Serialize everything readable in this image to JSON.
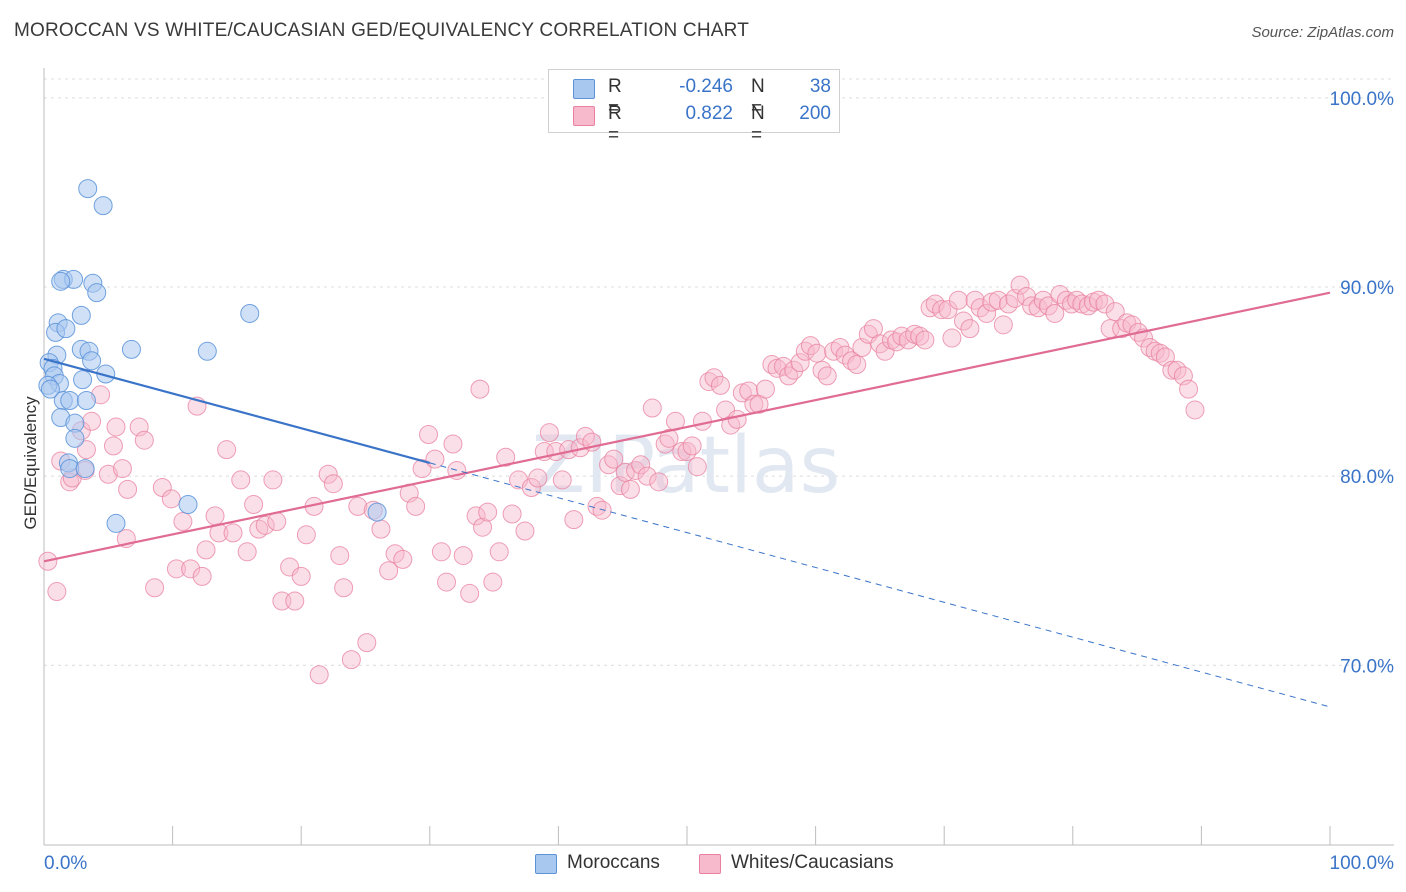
{
  "header": {
    "title": "MOROCCAN VS WHITE/CAUCASIAN GED/EQUIVALENCY CORRELATION CHART",
    "source": "Source: ZipAtlas.com"
  },
  "legend": {
    "rows": [
      {
        "r_label": "R =",
        "r_value": "-0.246",
        "n_label": "N =",
        "n_value": "38",
        "color": "#a9c8f0"
      },
      {
        "r_label": "R =",
        "r_value": "0.822",
        "n_label": "N =",
        "n_value": "200",
        "color": "#f7b9cc"
      }
    ]
  },
  "bottom_legend": {
    "moroccans": "Moroccans",
    "whites": "Whites/Caucasians"
  },
  "watermark": "ZIPatlas",
  "chart_data": {
    "type": "scatter",
    "title": "MOROCCAN VS WHITE/CAUCASIAN GED/EQUIVALENCY CORRELATION CHART",
    "ylabel": "GED/Equivalency",
    "xlabel": "",
    "xlim": [
      0,
      100
    ],
    "ylim": [
      60.5,
      102
    ],
    "x_tick_labels": [
      "0.0%",
      "100.0%"
    ],
    "y_ticks": [
      70,
      80,
      90,
      100
    ],
    "y_tick_labels": [
      "70.0%",
      "80.0%",
      "90.0%",
      "100.0%"
    ],
    "grid": true,
    "colors": {
      "moroccan_fill": "#a9c8f0",
      "moroccan_stroke": "#5b93d9",
      "moroccan_line": "#3a74c8",
      "white_fill": "#f7b9cc",
      "white_stroke": "#e8809f",
      "white_line": "#e06b93",
      "axis_label": "#3a74c8"
    },
    "series": [
      {
        "name": "Moroccans",
        "r": -0.246,
        "n": 38,
        "trend": {
          "x": [
            0,
            30
          ],
          "y": [
            86.2,
            80.7
          ],
          "dashed_to": [
            100,
            67.8
          ]
        },
        "points": [
          [
            3.4,
            95.2
          ],
          [
            4.6,
            94.3
          ],
          [
            1.5,
            90.4
          ],
          [
            2.3,
            90.4
          ],
          [
            1.3,
            90.3
          ],
          [
            3.8,
            90.2
          ],
          [
            4.1,
            89.7
          ],
          [
            16.0,
            88.6
          ],
          [
            2.9,
            88.5
          ],
          [
            1.1,
            88.1
          ],
          [
            0.9,
            87.6
          ],
          [
            1.7,
            87.8
          ],
          [
            6.8,
            86.7
          ],
          [
            2.9,
            86.7
          ],
          [
            3.5,
            86.6
          ],
          [
            12.7,
            86.6
          ],
          [
            1.0,
            86.4
          ],
          [
            3.7,
            86.1
          ],
          [
            0.4,
            86.0
          ],
          [
            0.7,
            85.7
          ],
          [
            4.8,
            85.4
          ],
          [
            0.8,
            85.3
          ],
          [
            3.0,
            85.1
          ],
          [
            1.2,
            84.9
          ],
          [
            0.3,
            84.8
          ],
          [
            0.5,
            84.6
          ],
          [
            1.5,
            84.0
          ],
          [
            2.0,
            84.0
          ],
          [
            3.3,
            84.0
          ],
          [
            1.3,
            83.1
          ],
          [
            2.4,
            82.8
          ],
          [
            2.4,
            82.0
          ],
          [
            1.9,
            80.7
          ],
          [
            2.0,
            80.4
          ],
          [
            3.2,
            80.4
          ],
          [
            11.2,
            78.5
          ],
          [
            25.9,
            78.1
          ],
          [
            5.6,
            77.5
          ]
        ]
      },
      {
        "name": "Whites/Caucasians",
        "r": 0.822,
        "n": 200,
        "trend": {
          "x": [
            0,
            100
          ],
          "y": [
            75.5,
            89.7
          ]
        },
        "points": [
          [
            0.3,
            75.5
          ],
          [
            1.0,
            73.9
          ],
          [
            1.3,
            80.8
          ],
          [
            2.0,
            79.7
          ],
          [
            2.2,
            79.9
          ],
          [
            2.9,
            82.4
          ],
          [
            3.2,
            80.3
          ],
          [
            3.3,
            81.4
          ],
          [
            3.7,
            82.9
          ],
          [
            4.4,
            84.3
          ],
          [
            5.0,
            80.1
          ],
          [
            5.4,
            81.6
          ],
          [
            5.6,
            82.6
          ],
          [
            6.1,
            80.4
          ],
          [
            6.5,
            79.3
          ],
          [
            6.4,
            76.7
          ],
          [
            7.4,
            82.6
          ],
          [
            7.8,
            81.9
          ],
          [
            8.6,
            74.1
          ],
          [
            9.2,
            79.4
          ],
          [
            9.9,
            78.8
          ],
          [
            10.3,
            75.1
          ],
          [
            10.8,
            77.6
          ],
          [
            11.4,
            75.1
          ],
          [
            11.9,
            83.7
          ],
          [
            12.3,
            74.7
          ],
          [
            12.6,
            76.1
          ],
          [
            13.3,
            77.9
          ],
          [
            13.6,
            77.0
          ],
          [
            14.2,
            81.4
          ],
          [
            14.7,
            77.0
          ],
          [
            15.3,
            79.8
          ],
          [
            15.8,
            76.0
          ],
          [
            16.3,
            78.5
          ],
          [
            16.7,
            77.2
          ],
          [
            17.2,
            77.4
          ],
          [
            17.8,
            79.8
          ],
          [
            18.1,
            77.6
          ],
          [
            18.5,
            73.4
          ],
          [
            19.1,
            75.2
          ],
          [
            19.5,
            73.4
          ],
          [
            20.0,
            74.7
          ],
          [
            20.4,
            76.9
          ],
          [
            21.0,
            78.4
          ],
          [
            21.4,
            69.5
          ],
          [
            22.1,
            80.1
          ],
          [
            22.5,
            79.6
          ],
          [
            23.0,
            75.8
          ],
          [
            23.3,
            74.1
          ],
          [
            23.9,
            70.3
          ],
          [
            24.4,
            78.4
          ],
          [
            25.1,
            71.2
          ],
          [
            25.6,
            78.2
          ],
          [
            26.2,
            77.2
          ],
          [
            26.8,
            75.0
          ],
          [
            27.3,
            75.9
          ],
          [
            27.9,
            75.6
          ],
          [
            28.4,
            79.1
          ],
          [
            28.9,
            78.4
          ],
          [
            29.4,
            80.4
          ],
          [
            29.9,
            82.2
          ],
          [
            30.4,
            80.9
          ],
          [
            30.9,
            76.0
          ],
          [
            31.3,
            74.4
          ],
          [
            31.8,
            81.7
          ],
          [
            32.1,
            80.3
          ],
          [
            32.6,
            75.8
          ],
          [
            33.1,
            73.8
          ],
          [
            33.6,
            77.9
          ],
          [
            34.1,
            77.3
          ],
          [
            34.5,
            78.1
          ],
          [
            34.9,
            74.4
          ],
          [
            35.4,
            76.0
          ],
          [
            35.9,
            81.0
          ],
          [
            36.4,
            78.0
          ],
          [
            36.9,
            79.8
          ],
          [
            37.4,
            77.1
          ],
          [
            37.9,
            79.4
          ],
          [
            38.4,
            79.9
          ],
          [
            38.9,
            81.3
          ],
          [
            39.3,
            82.3
          ],
          [
            39.8,
            81.3
          ],
          [
            40.3,
            79.8
          ],
          [
            40.8,
            81.4
          ],
          [
            41.2,
            77.7
          ],
          [
            41.7,
            81.5
          ],
          [
            42.1,
            82.1
          ],
          [
            42.6,
            81.8
          ],
          [
            43.0,
            78.4
          ],
          [
            43.4,
            78.2
          ],
          [
            43.9,
            80.6
          ],
          [
            44.3,
            80.9
          ],
          [
            44.8,
            79.5
          ],
          [
            45.2,
            80.2
          ],
          [
            45.6,
            79.3
          ],
          [
            46.0,
            80.3
          ],
          [
            46.4,
            80.6
          ],
          [
            46.9,
            80.0
          ],
          [
            47.3,
            83.6
          ],
          [
            47.8,
            79.7
          ],
          [
            48.3,
            81.7
          ],
          [
            48.6,
            82.0
          ],
          [
            49.1,
            82.9
          ],
          [
            49.6,
            81.3
          ],
          [
            50.0,
            81.3
          ],
          [
            50.4,
            81.6
          ],
          [
            50.8,
            80.5
          ],
          [
            51.2,
            82.9
          ],
          [
            51.7,
            85.0
          ],
          [
            52.1,
            85.2
          ],
          [
            52.6,
            84.8
          ],
          [
            53.0,
            83.5
          ],
          [
            53.4,
            82.7
          ],
          [
            53.9,
            83.0
          ],
          [
            54.3,
            84.4
          ],
          [
            54.8,
            84.5
          ],
          [
            55.2,
            83.8
          ],
          [
            55.6,
            83.8
          ],
          [
            56.1,
            84.6
          ],
          [
            56.6,
            85.9
          ],
          [
            57.0,
            85.7
          ],
          [
            57.5,
            85.8
          ],
          [
            57.9,
            85.3
          ],
          [
            58.3,
            85.6
          ],
          [
            58.8,
            86.0
          ],
          [
            59.2,
            86.6
          ],
          [
            59.6,
            86.9
          ],
          [
            60.1,
            86.5
          ],
          [
            60.5,
            85.6
          ],
          [
            60.9,
            85.3
          ],
          [
            61.4,
            86.6
          ],
          [
            61.9,
            86.8
          ],
          [
            62.3,
            86.4
          ],
          [
            62.8,
            86.1
          ],
          [
            63.2,
            85.9
          ],
          [
            63.6,
            86.8
          ],
          [
            64.1,
            87.5
          ],
          [
            64.5,
            87.8
          ],
          [
            65.0,
            87.0
          ],
          [
            65.4,
            86.6
          ],
          [
            65.9,
            87.2
          ],
          [
            66.3,
            87.1
          ],
          [
            66.7,
            87.4
          ],
          [
            67.2,
            87.2
          ],
          [
            67.7,
            87.5
          ],
          [
            68.1,
            87.4
          ],
          [
            68.5,
            87.2
          ],
          [
            68.9,
            88.9
          ],
          [
            69.3,
            89.1
          ],
          [
            69.8,
            88.8
          ],
          [
            70.3,
            88.8
          ],
          [
            70.6,
            87.3
          ],
          [
            71.1,
            89.3
          ],
          [
            71.5,
            88.2
          ],
          [
            72.0,
            87.8
          ],
          [
            72.4,
            89.3
          ],
          [
            72.8,
            88.9
          ],
          [
            73.3,
            88.6
          ],
          [
            73.7,
            89.2
          ],
          [
            74.2,
            89.3
          ],
          [
            74.6,
            88.0
          ],
          [
            75.0,
            89.1
          ],
          [
            75.5,
            89.4
          ],
          [
            75.9,
            90.1
          ],
          [
            76.4,
            89.5
          ],
          [
            76.8,
            89.0
          ],
          [
            77.3,
            88.9
          ],
          [
            77.7,
            89.3
          ],
          [
            78.1,
            89.0
          ],
          [
            78.6,
            88.6
          ],
          [
            79.0,
            89.6
          ],
          [
            79.5,
            89.3
          ],
          [
            79.9,
            89.1
          ],
          [
            80.3,
            89.3
          ],
          [
            80.7,
            89.1
          ],
          [
            81.2,
            89.0
          ],
          [
            81.6,
            89.2
          ],
          [
            82.0,
            89.3
          ],
          [
            82.5,
            89.1
          ],
          [
            82.9,
            87.8
          ],
          [
            83.3,
            88.7
          ],
          [
            83.8,
            87.8
          ],
          [
            84.2,
            88.1
          ],
          [
            84.6,
            88.0
          ],
          [
            85.1,
            87.6
          ],
          [
            85.5,
            87.3
          ],
          [
            86.0,
            86.8
          ],
          [
            86.4,
            86.6
          ],
          [
            86.8,
            86.5
          ],
          [
            87.2,
            86.3
          ],
          [
            87.7,
            85.6
          ],
          [
            88.1,
            85.6
          ],
          [
            88.6,
            85.3
          ],
          [
            89.0,
            84.6
          ],
          [
            89.5,
            83.5
          ],
          [
            33.9,
            84.6
          ]
        ]
      }
    ]
  }
}
